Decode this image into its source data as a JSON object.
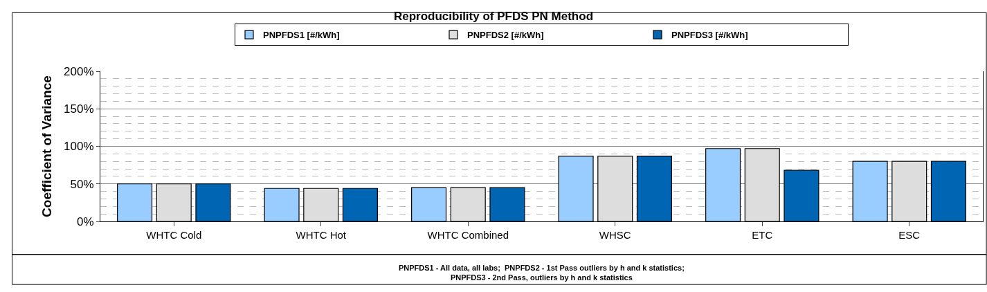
{
  "chart_data": {
    "type": "bar",
    "title": "Reproducibility of PFDS PN Method",
    "ylabel": "Coefficient of Variance",
    "categories": [
      "WHTC Cold",
      "WHTC Hot",
      "WHTC Combined",
      "WHSC",
      "ETC",
      "ESC"
    ],
    "series": [
      {
        "name": "PNPFDS1 [#/kWh]",
        "color": "#99ccff",
        "values": [
          50,
          44,
          45,
          87,
          97,
          80
        ]
      },
      {
        "name": "PNPFDS2 [#/kWh]",
        "color": "#dddddd",
        "values": [
          50,
          44,
          45,
          87,
          97,
          80
        ]
      },
      {
        "name": "PNPFDS3 [#/kWh]",
        "color": "#0066b3",
        "values": [
          50,
          44,
          45,
          87,
          68,
          80
        ]
      }
    ],
    "ylim": [
      0,
      200
    ],
    "yticks": [
      {
        "value": 0,
        "label": "0%"
      },
      {
        "value": 50,
        "label": "50%"
      },
      {
        "value": 100,
        "label": "100%"
      },
      {
        "value": 150,
        "label": "150%"
      },
      {
        "value": 200,
        "label": "200%"
      }
    ],
    "grid": "y",
    "legend": "top",
    "annotations": [
      "PNPFDS1 - All data, all labs;  PNPFDS2 - 1st Pass outliers by h and k statistics;\nPNPFDS3 - 2nd Pass, outliers by h and k statistics"
    ]
  }
}
